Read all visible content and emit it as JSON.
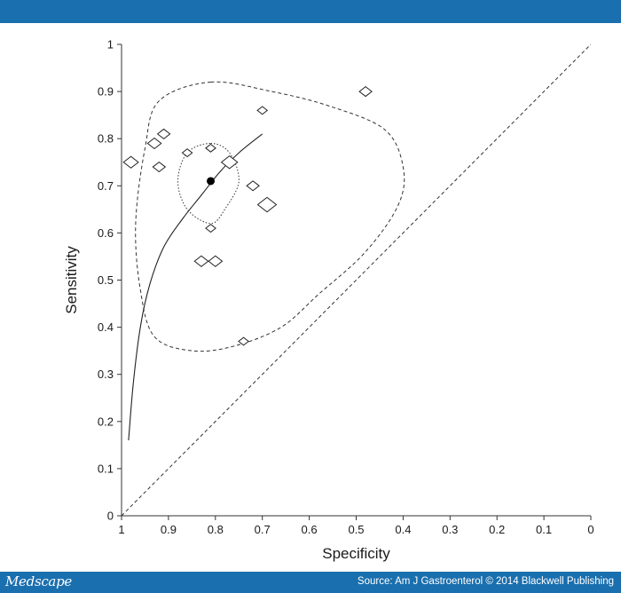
{
  "header": {
    "color": "#1a6fae"
  },
  "footer": {
    "brand": "Medscape",
    "source": "Source: Am J Gastroenterol © 2014 Blackwell Publishing",
    "color": "#1a6fae"
  },
  "chart_data": {
    "type": "scatter",
    "title": "",
    "xlabel": "Specificity",
    "ylabel": "Sensitivity",
    "x_reversed": true,
    "xlim": [
      1,
      0
    ],
    "ylim": [
      0,
      1
    ],
    "xticks": [
      "1",
      "0.9",
      "0.8",
      "0.7",
      "0.6",
      "0.5",
      "0.4",
      "0.3",
      "0.2",
      "0.1",
      "0"
    ],
    "yticks": [
      "0",
      "0.1",
      "0.2",
      "0.3",
      "0.4",
      "0.5",
      "0.6",
      "0.7",
      "0.8",
      "0.9",
      "1"
    ],
    "grid": false,
    "studies": [
      {
        "specificity": 0.98,
        "sensitivity": 0.75,
        "weight": 1.2
      },
      {
        "specificity": 0.93,
        "sensitivity": 0.79,
        "weight": 1.1
      },
      {
        "specificity": 0.91,
        "sensitivity": 0.81,
        "weight": 1.0
      },
      {
        "specificity": 0.92,
        "sensitivity": 0.74,
        "weight": 1.0
      },
      {
        "specificity": 0.86,
        "sensitivity": 0.77,
        "weight": 0.8
      },
      {
        "specificity": 0.81,
        "sensitivity": 0.78,
        "weight": 0.8
      },
      {
        "specificity": 0.77,
        "sensitivity": 0.75,
        "weight": 1.3
      },
      {
        "specificity": 0.72,
        "sensitivity": 0.7,
        "weight": 1.0
      },
      {
        "specificity": 0.69,
        "sensitivity": 0.66,
        "weight": 1.5
      },
      {
        "specificity": 0.81,
        "sensitivity": 0.61,
        "weight": 0.8
      },
      {
        "specificity": 0.83,
        "sensitivity": 0.54,
        "weight": 1.1
      },
      {
        "specificity": 0.8,
        "sensitivity": 0.54,
        "weight": 1.1
      },
      {
        "specificity": 0.7,
        "sensitivity": 0.86,
        "weight": 0.8
      },
      {
        "specificity": 0.48,
        "sensitivity": 0.9,
        "weight": 1.0
      },
      {
        "specificity": 0.74,
        "sensitivity": 0.37,
        "weight": 0.8
      }
    ],
    "summary_point": {
      "specificity": 0.81,
      "sensitivity": 0.71
    },
    "sroc_curve": [
      [
        0.985,
        0.16
      ],
      [
        0.975,
        0.28
      ],
      [
        0.96,
        0.4
      ],
      [
        0.94,
        0.49
      ],
      [
        0.91,
        0.57
      ],
      [
        0.87,
        0.63
      ],
      [
        0.83,
        0.68
      ],
      [
        0.79,
        0.73
      ],
      [
        0.75,
        0.77
      ],
      [
        0.7,
        0.81
      ]
    ],
    "confidence_region": [
      [
        0.81,
        0.79
      ],
      [
        0.77,
        0.77
      ],
      [
        0.75,
        0.71
      ],
      [
        0.78,
        0.65
      ],
      [
        0.81,
        0.62
      ],
      [
        0.86,
        0.65
      ],
      [
        0.88,
        0.71
      ],
      [
        0.86,
        0.77
      ]
    ],
    "prediction_region": [
      [
        0.81,
        0.92
      ],
      [
        0.68,
        0.9
      ],
      [
        0.56,
        0.87
      ],
      [
        0.44,
        0.82
      ],
      [
        0.4,
        0.74
      ],
      [
        0.41,
        0.66
      ],
      [
        0.48,
        0.56
      ],
      [
        0.58,
        0.47
      ],
      [
        0.66,
        0.4
      ],
      [
        0.76,
        0.36
      ],
      [
        0.85,
        0.35
      ],
      [
        0.93,
        0.38
      ],
      [
        0.96,
        0.48
      ],
      [
        0.97,
        0.62
      ],
      [
        0.95,
        0.78
      ],
      [
        0.92,
        0.88
      ]
    ],
    "reference_line": [
      [
        1,
        0
      ],
      [
        0,
        1
      ]
    ]
  }
}
